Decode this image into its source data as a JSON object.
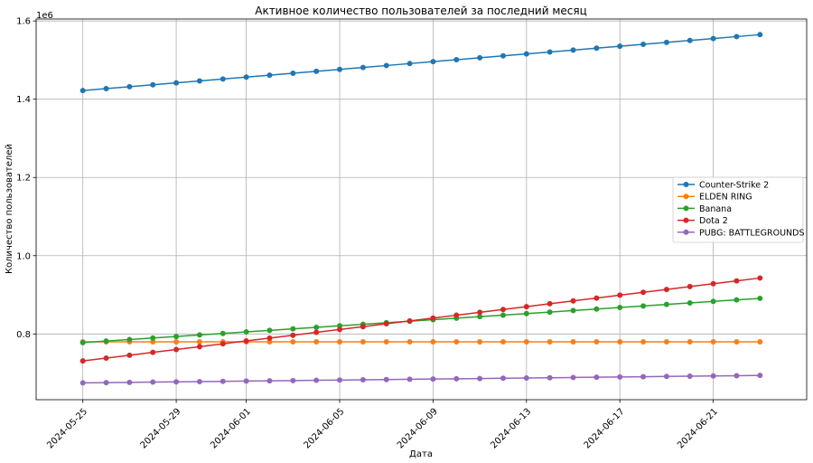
{
  "chart_data": {
    "type": "line",
    "title": "Активное количество пользователей за последний месяц",
    "xlabel": "Дата",
    "ylabel": "Количество пользователей",
    "y_offset_label": "1e6",
    "x_start": "2024-05-25",
    "x_end": "2024-06-23",
    "xlim": [
      "2024-05-23",
      "2024-06-25"
    ],
    "ylim": [
      0.632,
      1.605
    ],
    "x_ticks": [
      "2024-05-25",
      "2024-05-29",
      "2024-06-01",
      "2024-06-05",
      "2024-06-09",
      "2024-06-13",
      "2024-06-17",
      "2024-06-21"
    ],
    "y_ticks": [
      0.8,
      1.0,
      1.2,
      1.4,
      1.6
    ],
    "y_tick_labels": [
      "0.8",
      "1.0",
      "1.2",
      "1.4",
      "1.6"
    ],
    "grid": true,
    "legend_position": "center-right",
    "series": [
      {
        "name": "Counter-Strike 2",
        "color": "#1f77b4",
        "start": 1.422,
        "end": 1.565
      },
      {
        "name": "ELDEN RING",
        "color": "#ff7f0e",
        "start": 0.78,
        "end": 0.78
      },
      {
        "name": "Banana",
        "color": "#2ca02c",
        "start": 0.778,
        "end": 0.891
      },
      {
        "name": "Dota 2",
        "color": "#d62728",
        "start": 0.731,
        "end": 0.943
      },
      {
        "name": "PUBG: BATTLEGROUNDS",
        "color": "#9467bd",
        "start": 0.675,
        "end": 0.694
      }
    ]
  }
}
